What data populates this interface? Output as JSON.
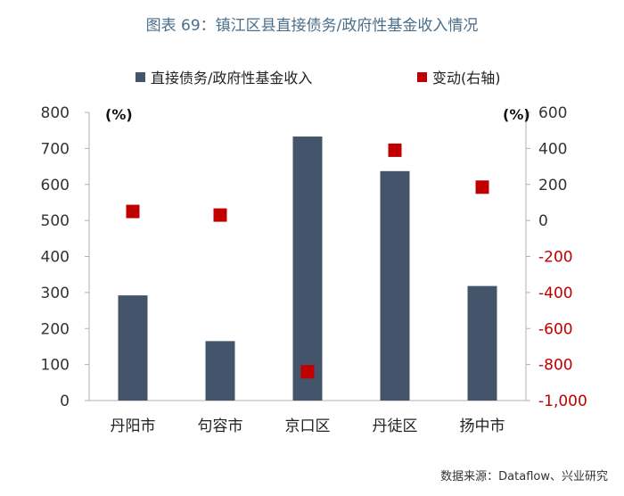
{
  "title": "图表 69：镇江区县直接债务/政府性基金收入情况",
  "source": "数据来源：Dataflow、兴业研究",
  "chart_data": {
    "type": "bar",
    "categories": [
      "丹阳市",
      "句容市",
      "京口区",
      "丹徒区",
      "扬中市"
    ],
    "series": [
      {
        "name": "直接债务/政府性基金收入",
        "kind": "bar",
        "axis": "left",
        "color": "#44546a",
        "values": [
          292,
          165,
          733,
          637,
          318
        ]
      },
      {
        "name": "变动(右轴)",
        "kind": "scatter",
        "axis": "right",
        "color": "#c00000",
        "values": [
          50,
          30,
          -840,
          390,
          185
        ]
      }
    ],
    "y_left": {
      "unit_label": "(%)",
      "ylim": [
        0,
        800
      ],
      "ticks": [
        "0",
        "100",
        "200",
        "300",
        "400",
        "500",
        "600",
        "700",
        "800"
      ]
    },
    "y_right": {
      "unit_label": "(%)",
      "ylim": [
        -1000,
        600
      ],
      "ticks": [
        "-1,000",
        "-800",
        "-600",
        "-400",
        "-200",
        "0",
        "200",
        "400",
        "600"
      ]
    },
    "grid": false,
    "legend_position": "top"
  }
}
